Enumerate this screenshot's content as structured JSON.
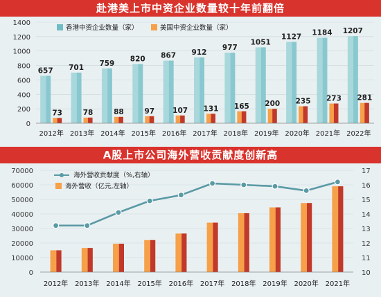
{
  "colors": {
    "banner": "#d8332c",
    "hk_bar_light": "#a9d8dc",
    "hk_bar_dark": "#6fbcc4",
    "us_bar_light": "#f6a04a",
    "us_bar_dark": "#c0392b",
    "line": "#5a9aa5",
    "grid": "#c9d6da",
    "page_bg": "#e9f0f2"
  },
  "chart_data": [
    {
      "type": "bar",
      "title": "赴港美上市中资企业数量较十年前翻倍",
      "categories": [
        "2012年",
        "2013年",
        "2014年",
        "2015年",
        "2016年",
        "2017年",
        "2018年",
        "2019年",
        "2020年",
        "2021年",
        "2022年"
      ],
      "series": [
        {
          "name": "香港中资企业数量（家）",
          "values": [
            657,
            701,
            759,
            820,
            867,
            912,
            977,
            1051,
            1127,
            1184,
            1207
          ]
        },
        {
          "name": "美国中资企业数量（家）",
          "values": [
            73,
            78,
            88,
            97,
            107,
            131,
            165,
            200,
            235,
            273,
            281
          ]
        }
      ],
      "yticks": [
        "0",
        "200",
        "400",
        "600",
        "800",
        "1000",
        "1200",
        "1400"
      ],
      "ylim": [
        0,
        1400
      ],
      "legend": "top-left",
      "grid": true
    },
    {
      "type": "bar",
      "title": "A股上市公司海外营收贡献度创新高",
      "categories": [
        "2012年",
        "2013年",
        "2014年",
        "2015年",
        "2016年",
        "2017年",
        "2018年",
        "2019年",
        "2020年",
        "2021年"
      ],
      "series": [
        {
          "name": "海外营收贡献度（%,右轴）",
          "type": "line",
          "axis": "right",
          "values": [
            13.2,
            13.2,
            14.1,
            14.9,
            15.3,
            16.1,
            16.0,
            15.9,
            15.6,
            16.2
          ]
        },
        {
          "name": "海外营收（亿元,左轴）",
          "type": "bar",
          "axis": "left",
          "values": [
            15000,
            16600,
            19500,
            22000,
            26500,
            34000,
            40500,
            44500,
            47500,
            59000
          ]
        }
      ],
      "yticks_left": [
        "0",
        "10000",
        "20000",
        "30000",
        "40000",
        "50000",
        "60000",
        "70000"
      ],
      "ylim_left": [
        0,
        70000
      ],
      "yticks_right": [
        "10",
        "11",
        "12",
        "13",
        "14",
        "15",
        "16",
        "17"
      ],
      "ylim_right": [
        10,
        17
      ],
      "legend": "top-left",
      "grid": true
    }
  ]
}
